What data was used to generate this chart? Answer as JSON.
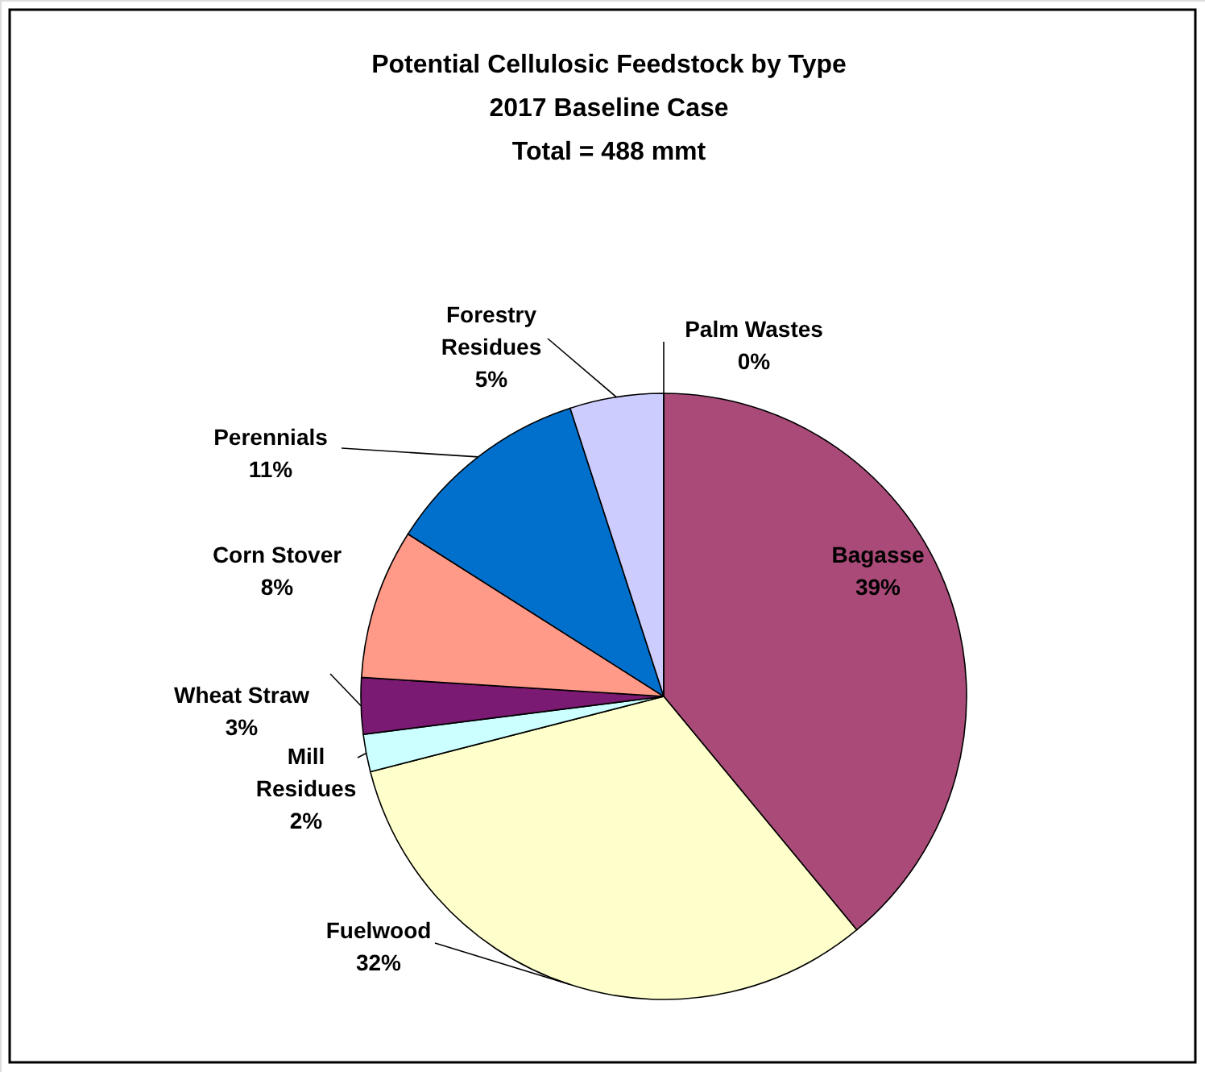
{
  "chart_data": {
    "type": "pie",
    "title": "Potential Cellulosic Feedstock by Type",
    "subtitle": "2017 Baseline Case",
    "annotations": [
      "Total = 488 mmt"
    ],
    "categories": [
      "Bagasse",
      "Fuelwood",
      "Mill Residues",
      "Wheat Straw",
      "Corn Stover",
      "Perennials",
      "Forestry Residues",
      "Palm Wastes"
    ],
    "values": [
      39,
      32,
      2,
      3,
      8,
      11,
      5,
      0
    ],
    "value_labels": [
      "39%",
      "32%",
      "2%",
      "3%",
      "8%",
      "11%",
      "5%",
      "0%"
    ],
    "colors": [
      "#a94a78",
      "#ffffcc",
      "#ccffff",
      "#7b1a72",
      "#ff9988",
      "#0070cc",
      "#ccccff",
      "#000080"
    ]
  }
}
